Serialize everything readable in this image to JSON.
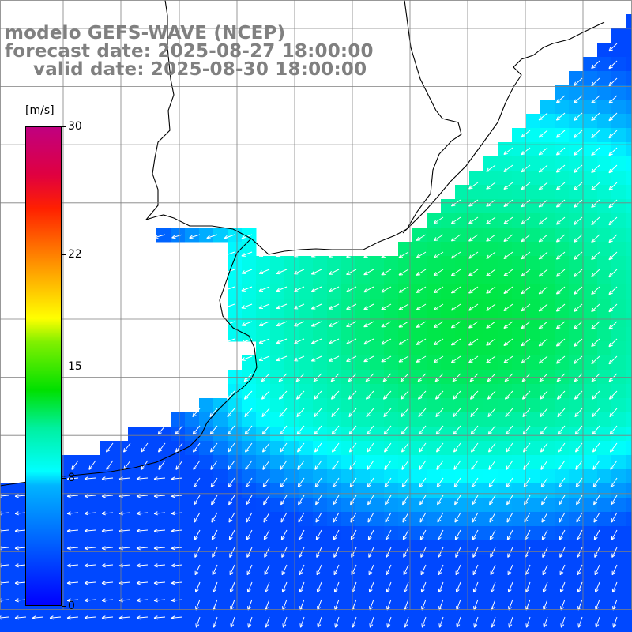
{
  "title": {
    "line1": "modelo GEFS-WAVE (NCEP)",
    "line2": "forecast date: 2025-08-27 18:00:00",
    "line3": "valid date: 2025-08-30 18:00:00"
  },
  "colorbar": {
    "unit": "[m/s]",
    "ticks": [
      {
        "label": "30",
        "value": 30
      },
      {
        "label": "22",
        "value": 22
      },
      {
        "label": "15",
        "value": 15
      },
      {
        "label": "8",
        "value": 8
      },
      {
        "label": "0",
        "value": 0
      }
    ],
    "min": 0,
    "max": 30
  },
  "colors": {
    "coast": "#000000",
    "grid": "#7f7f7f",
    "arrows": "#ffffff",
    "title": "#808080"
  }
}
